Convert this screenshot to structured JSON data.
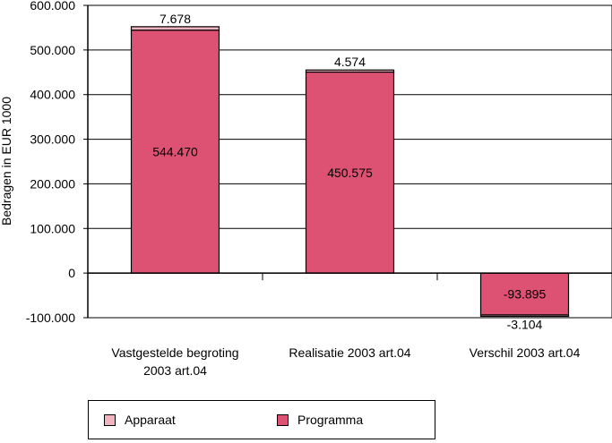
{
  "chart_data": {
    "type": "bar",
    "stacked": true,
    "ylabel": "Bedragen in EUR 1000",
    "ylim": [
      -100000,
      600000
    ],
    "yticks": [
      {
        "value": 600000,
        "label": "600.000"
      },
      {
        "value": 500000,
        "label": "500.000"
      },
      {
        "value": 400000,
        "label": "400.000"
      },
      {
        "value": 300000,
        "label": "300.000"
      },
      {
        "value": 200000,
        "label": "200.000"
      },
      {
        "value": 100000,
        "label": "100.000"
      },
      {
        "value": 0,
        "label": "0"
      },
      {
        "value": -100000,
        "label": "-100.000"
      }
    ],
    "categories": [
      [
        "Vastgestelde begroting",
        "2003 art.04"
      ],
      [
        "Realisatie 2003 art.04"
      ],
      [
        "Verschil 2003 art.04"
      ]
    ],
    "grid": true,
    "legend_position": "bottom",
    "series": [
      {
        "name": "Programma",
        "color": "#dd5272",
        "values": [
          544470,
          450575,
          -93895
        ],
        "labels": [
          "544.470",
          "450.575",
          "-93.895"
        ]
      },
      {
        "name": "Apparaat",
        "color": "#f2b3c1",
        "values": [
          7678,
          4574,
          -3104
        ],
        "labels": [
          "7.678",
          "4.574",
          "-3.104"
        ]
      }
    ]
  }
}
